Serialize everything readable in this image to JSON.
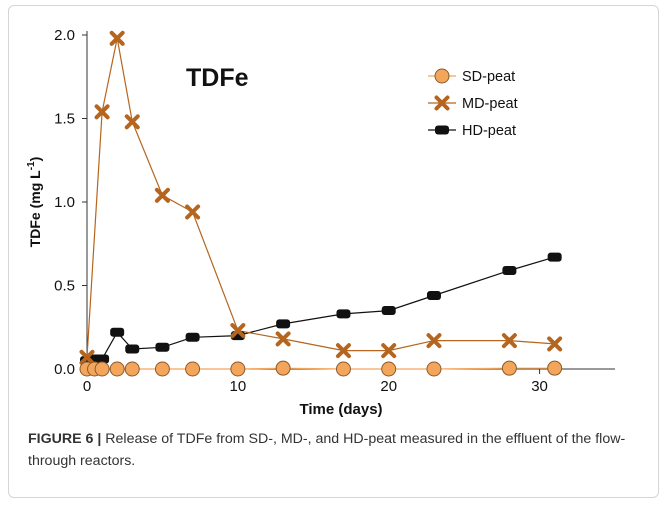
{
  "chart_data": {
    "type": "line",
    "title": "TDFe",
    "xlabel": "Time (days)",
    "ylabel": "TDFe (mg L",
    "ylabel_superscript": "-1",
    "ylabel_close": ")",
    "xlim": [
      0,
      35
    ],
    "ylim": [
      0,
      2.0
    ],
    "xticks": [
      0,
      10,
      20,
      30
    ],
    "xtick_labels": [
      "0",
      "10",
      "20",
      "30"
    ],
    "yticks": [
      0,
      0.5,
      1.0,
      1.5,
      2.0
    ],
    "ytick_labels": [
      "0.0",
      "0.5",
      "1.0",
      "1.5",
      "2.0"
    ],
    "grid": false,
    "legend_position": "top-right",
    "series": [
      {
        "name": "SD-peat",
        "marker": "circle",
        "color": "#F4A55C",
        "x": [
          0,
          0.5,
          1,
          2,
          3,
          5,
          7,
          10,
          13,
          17,
          20,
          23,
          28,
          31
        ],
        "y": [
          0.0,
          0.0,
          0.0,
          0.0,
          0.0,
          0.0,
          0.0,
          0.0,
          0.005,
          0.0,
          0.0,
          0.0,
          0.005,
          0.005
        ]
      },
      {
        "name": "MD-peat",
        "marker": "x",
        "color": "#B5651D",
        "x": [
          0,
          1,
          2,
          3,
          5,
          7,
          10,
          13,
          17,
          20,
          23,
          28,
          31
        ],
        "y": [
          0.07,
          1.54,
          1.98,
          1.48,
          1.04,
          0.94,
          0.23,
          0.18,
          0.11,
          0.11,
          0.17,
          0.17,
          0.15
        ]
      },
      {
        "name": "HD-peat",
        "marker": "square",
        "color": "#111111",
        "x": [
          0,
          0.5,
          1,
          2,
          3,
          5,
          7,
          10,
          13,
          17,
          20,
          23,
          28,
          31
        ],
        "y": [
          0.05,
          0.06,
          0.06,
          0.22,
          0.12,
          0.13,
          0.19,
          0.2,
          0.27,
          0.33,
          0.35,
          0.44,
          0.59,
          0.67
        ]
      }
    ]
  },
  "caption": {
    "label": "FIGURE 6 |",
    "text": " Release of TDFe from SD-, MD-, and HD-peat measured in the effluent of the flow-through reactors."
  }
}
